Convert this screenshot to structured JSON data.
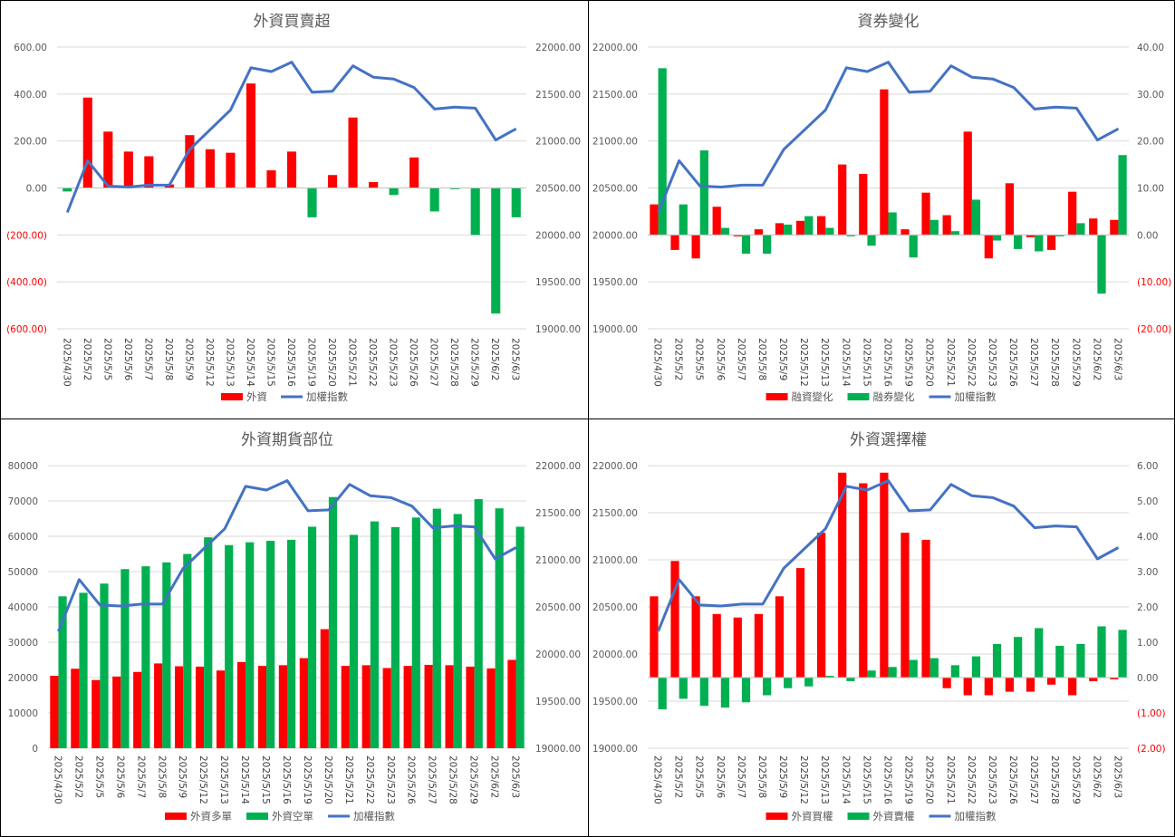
{
  "charts": [
    {
      "title": "外資買賣超",
      "bar_mode": "single",
      "y_left": {
        "min": -600,
        "max": 600,
        "step": 200,
        "format": "paren2"
      },
      "y_right": {
        "min": 19000,
        "max": 22000,
        "step": 500,
        "format": "fixed2"
      },
      "legend": [
        "外資",
        "加權指數"
      ]
    },
    {
      "title": "資券變化",
      "bar_mode": "grouped",
      "y_left": {
        "min": 19000,
        "max": 22000,
        "step": 500,
        "format": "fixed2"
      },
      "y_right": {
        "min": -20,
        "max": 40,
        "step": 10,
        "format": "paren2"
      },
      "legend": [
        "融資變化",
        "融券變化",
        "加權指數"
      ]
    },
    {
      "title": "外資期貨部位",
      "bar_mode": "grouped",
      "y_left": {
        "min": 0,
        "max": 80000,
        "step": 10000,
        "format": "int"
      },
      "y_right": {
        "min": 19000,
        "max": 22000,
        "step": 500,
        "format": "fixed2"
      },
      "legend": [
        "外資多單",
        "外資空單",
        "加權指數"
      ]
    },
    {
      "title": "外資選擇權",
      "bar_mode": "grouped",
      "y_left": {
        "min": 19000,
        "max": 22000,
        "step": 500,
        "format": "fixed2"
      },
      "y_right": {
        "min": -2,
        "max": 6,
        "step": 1,
        "format": "paren2"
      },
      "legend": [
        "外資買權",
        "外資賣權",
        "加權指數"
      ]
    }
  ],
  "chart_data": [
    {
      "type": "bar",
      "title": "外資買賣超",
      "categories": [
        "2025/4/30",
        "2025/5/2",
        "2025/5/5",
        "2025/5/6",
        "2025/5/7",
        "2025/5/8",
        "2025/5/9",
        "2025/5/12",
        "2025/5/13",
        "2025/5/14",
        "2025/5/15",
        "2025/5/16",
        "2025/5/19",
        "2025/5/20",
        "2025/5/21",
        "2025/5/22",
        "2025/5/23",
        "2025/5/26",
        "2025/5/27",
        "2025/5/28",
        "2025/5/29",
        "2025/6/2",
        "2025/6/3"
      ],
      "series": [
        {
          "name": "外資",
          "type": "bar",
          "axis": "left",
          "color": "#ff0000",
          "neg_color": "#00b050",
          "values": [
            -15,
            385,
            240,
            155,
            135,
            15,
            225,
            165,
            150,
            445,
            75,
            155,
            -125,
            55,
            300,
            25,
            -30,
            130,
            -100,
            -5,
            -200,
            -535,
            -125
          ]
        },
        {
          "name": "加權指數",
          "type": "line",
          "axis": "right",
          "color": "#4472c4",
          "values": [
            20240,
            20790,
            20520,
            20510,
            20530,
            20530,
            20910,
            21120,
            21330,
            21780,
            21740,
            21840,
            21520,
            21530,
            21800,
            21680,
            21660,
            21570,
            21340,
            21360,
            21350,
            21010,
            21130
          ]
        }
      ],
      "ylim": [
        -600,
        600
      ],
      "y2lim": [
        19000,
        22000
      ]
    },
    {
      "type": "bar",
      "title": "資券變化",
      "categories": [
        "2025/4/30",
        "2025/5/2",
        "2025/5/5",
        "2025/5/6",
        "2025/5/7",
        "2025/5/8",
        "2025/5/9",
        "2025/5/12",
        "2025/5/13",
        "2025/5/14",
        "2025/5/15",
        "2025/5/16",
        "2025/5/19",
        "2025/5/20",
        "2025/5/21",
        "2025/5/22",
        "2025/5/23",
        "2025/5/26",
        "2025/5/27",
        "2025/5/28",
        "2025/5/29",
        "2025/6/2",
        "2025/6/3"
      ],
      "series": [
        {
          "name": "融資變化",
          "type": "bar",
          "axis": "right",
          "color": "#ff0000",
          "values": [
            6.5,
            -3.2,
            -5,
            6,
            -0.3,
            1.2,
            2.5,
            3,
            4,
            15,
            13,
            31,
            1.2,
            9,
            4.2,
            22,
            -5,
            11,
            -0.5,
            -3.2,
            9.2,
            3.5,
            3.2
          ]
        },
        {
          "name": "融券變化",
          "type": "bar",
          "axis": "right",
          "color": "#00b050",
          "values": [
            35.5,
            6.5,
            18,
            1.5,
            -4,
            -4,
            2.2,
            4,
            1.5,
            -0.3,
            -2.3,
            4.8,
            -4.8,
            3.2,
            0.8,
            7.5,
            -1.2,
            -3,
            -3.5,
            -0.3,
            2.5,
            -12.5,
            17
          ]
        },
        {
          "name": "加權指數",
          "type": "line",
          "axis": "left",
          "color": "#4472c4",
          "values": [
            20240,
            20790,
            20520,
            20510,
            20530,
            20530,
            20910,
            21120,
            21330,
            21780,
            21740,
            21840,
            21520,
            21530,
            21800,
            21680,
            21660,
            21570,
            21340,
            21360,
            21350,
            21010,
            21130
          ]
        }
      ],
      "ylim": [
        19000,
        22000
      ],
      "y2lim": [
        -20,
        40
      ]
    },
    {
      "type": "bar",
      "title": "外資期貨部位",
      "categories": [
        "2025/4/30",
        "2025/5/2",
        "2025/5/5",
        "2025/5/6",
        "2025/5/7",
        "2025/5/8",
        "2025/5/9",
        "2025/5/12",
        "2025/5/13",
        "2025/5/14",
        "2025/5/15",
        "2025/5/16",
        "2025/5/19",
        "2025/5/20",
        "2025/5/21",
        "2025/5/22",
        "2025/5/23",
        "2025/5/26",
        "2025/5/27",
        "2025/5/28",
        "2025/5/29",
        "2025/6/2",
        "2025/6/3"
      ],
      "series": [
        {
          "name": "外資多單",
          "type": "bar",
          "axis": "left",
          "color": "#ff0000",
          "values": [
            20500,
            22500,
            19300,
            20300,
            21600,
            24000,
            23200,
            23100,
            22000,
            24400,
            23300,
            23500,
            25500,
            33700,
            23300,
            23500,
            22700,
            23300,
            23600,
            23500,
            23100,
            22600,
            25000
          ]
        },
        {
          "name": "外資空單",
          "type": "bar",
          "axis": "left",
          "color": "#00b050",
          "values": [
            43000,
            44000,
            46600,
            50700,
            51500,
            52600,
            55000,
            59700,
            57500,
            58300,
            58700,
            59000,
            62700,
            71100,
            60400,
            64200,
            62600,
            65300,
            67800,
            66300,
            70500,
            67900,
            62700
          ]
        },
        {
          "name": "加權指數",
          "type": "line",
          "axis": "right",
          "color": "#4472c4",
          "values": [
            20240,
            20790,
            20520,
            20510,
            20530,
            20530,
            20910,
            21120,
            21330,
            21780,
            21740,
            21840,
            21520,
            21530,
            21800,
            21680,
            21660,
            21570,
            21340,
            21360,
            21350,
            21010,
            21130
          ]
        }
      ],
      "ylim": [
        0,
        80000
      ],
      "y2lim": [
        19000,
        22000
      ]
    },
    {
      "type": "bar",
      "title": "外資選擇權",
      "categories": [
        "2025/4/30",
        "2025/5/2",
        "2025/5/5",
        "2025/5/6",
        "2025/5/7",
        "2025/5/8",
        "2025/5/9",
        "2025/5/12",
        "2025/5/13",
        "2025/5/14",
        "2025/5/15",
        "2025/5/16",
        "2025/5/19",
        "2025/5/20",
        "2025/5/21",
        "2025/5/22",
        "2025/5/23",
        "2025/5/26",
        "2025/5/27",
        "2025/5/28",
        "2025/5/29",
        "2025/6/2",
        "2025/6/3"
      ],
      "series": [
        {
          "name": "外資買權",
          "type": "bar",
          "axis": "right",
          "color": "#ff0000",
          "values": [
            2.3,
            3.3,
            2.3,
            1.8,
            1.7,
            1.8,
            2.3,
            3.1,
            4.1,
            5.8,
            5.5,
            5.8,
            4.1,
            3.9,
            -0.3,
            -0.5,
            -0.5,
            -0.4,
            -0.4,
            -0.2,
            -0.5,
            -0.1,
            -0.05
          ]
        },
        {
          "name": "外資賣權",
          "type": "bar",
          "axis": "right",
          "color": "#00b050",
          "values": [
            -0.9,
            -0.6,
            -0.8,
            -0.85,
            -0.7,
            -0.5,
            -0.3,
            -0.25,
            0.05,
            -0.1,
            0.2,
            0.3,
            0.5,
            0.55,
            0.35,
            0.6,
            0.95,
            1.15,
            1.4,
            0.9,
            0.95,
            1.45,
            1.35
          ]
        },
        {
          "name": "加權指數",
          "type": "line",
          "axis": "left",
          "color": "#4472c4",
          "values": [
            20240,
            20790,
            20520,
            20510,
            20530,
            20530,
            20910,
            21120,
            21330,
            21780,
            21740,
            21840,
            21520,
            21530,
            21800,
            21680,
            21660,
            21570,
            21340,
            21360,
            21350,
            21010,
            21130
          ]
        }
      ],
      "ylim": [
        19000,
        22000
      ],
      "y2lim": [
        -2,
        6
      ]
    }
  ]
}
